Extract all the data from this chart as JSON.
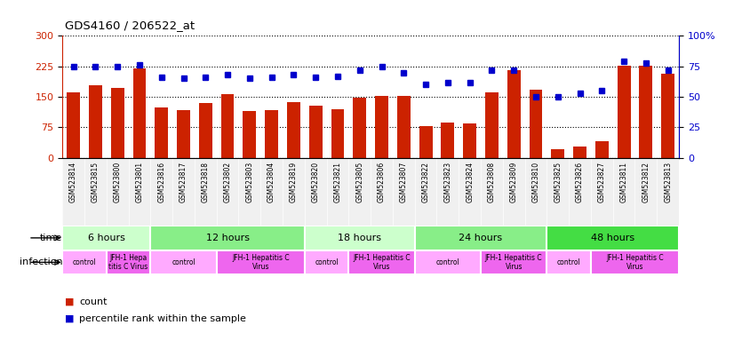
{
  "title": "GDS4160 / 206522_at",
  "samples": [
    "GSM523814",
    "GSM523815",
    "GSM523800",
    "GSM523801",
    "GSM523816",
    "GSM523817",
    "GSM523818",
    "GSM523802",
    "GSM523803",
    "GSM523804",
    "GSM523819",
    "GSM523820",
    "GSM523821",
    "GSM523805",
    "GSM523806",
    "GSM523807",
    "GSM523822",
    "GSM523823",
    "GSM523824",
    "GSM523808",
    "GSM523809",
    "GSM523810",
    "GSM523825",
    "GSM523826",
    "GSM523827",
    "GSM523811",
    "GSM523812",
    "GSM523813"
  ],
  "counts": [
    160,
    178,
    172,
    220,
    125,
    118,
    135,
    157,
    115,
    118,
    138,
    128,
    120,
    147,
    152,
    152,
    78,
    87,
    85,
    160,
    215,
    168,
    22,
    28,
    42,
    227,
    226,
    207
  ],
  "percentile": [
    75,
    75,
    75,
    76,
    66,
    65,
    66,
    68,
    65,
    66,
    68,
    66,
    67,
    72,
    75,
    70,
    60,
    62,
    62,
    72,
    72,
    50,
    50,
    53,
    55,
    79,
    78,
    72
  ],
  "ylim_left": [
    0,
    300
  ],
  "ylim_right": [
    0,
    100
  ],
  "yticks_left": [
    0,
    75,
    150,
    225,
    300
  ],
  "yticks_right": [
    0,
    25,
    50,
    75,
    100
  ],
  "bar_color": "#cc2200",
  "dot_color": "#0000cc",
  "bg_color": "#f0f0f0",
  "time_groups": [
    {
      "label": "6 hours",
      "start": 0,
      "end": 4,
      "color": "#ccffcc"
    },
    {
      "label": "12 hours",
      "start": 4,
      "end": 11,
      "color": "#88ee88"
    },
    {
      "label": "18 hours",
      "start": 11,
      "end": 16,
      "color": "#ccffcc"
    },
    {
      "label": "24 hours",
      "start": 16,
      "end": 22,
      "color": "#88ee88"
    },
    {
      "label": "48 hours",
      "start": 22,
      "end": 28,
      "color": "#44dd44"
    }
  ],
  "infection_groups": [
    {
      "label": "control",
      "start": 0,
      "end": 2,
      "color": "#ffaaff"
    },
    {
      "label": "JFH-1 Hepa\ntitis C Virus",
      "start": 2,
      "end": 4,
      "color": "#ee66ee"
    },
    {
      "label": "control",
      "start": 4,
      "end": 7,
      "color": "#ffaaff"
    },
    {
      "label": "JFH-1 Hepatitis C\nVirus",
      "start": 7,
      "end": 11,
      "color": "#ee66ee"
    },
    {
      "label": "control",
      "start": 11,
      "end": 13,
      "color": "#ffaaff"
    },
    {
      "label": "JFH-1 Hepatitis C\nVirus",
      "start": 13,
      "end": 16,
      "color": "#ee66ee"
    },
    {
      "label": "control",
      "start": 16,
      "end": 19,
      "color": "#ffaaff"
    },
    {
      "label": "JFH-1 Hepatitis C\nVirus",
      "start": 19,
      "end": 22,
      "color": "#ee66ee"
    },
    {
      "label": "control",
      "start": 22,
      "end": 24,
      "color": "#ffaaff"
    },
    {
      "label": "JFH-1 Hepatitis C\nVirus",
      "start": 24,
      "end": 28,
      "color": "#ee66ee"
    }
  ],
  "legend_count_label": "count",
  "legend_percentile_label": "percentile rank within the sample",
  "time_label": "time",
  "infection_label": "infection"
}
